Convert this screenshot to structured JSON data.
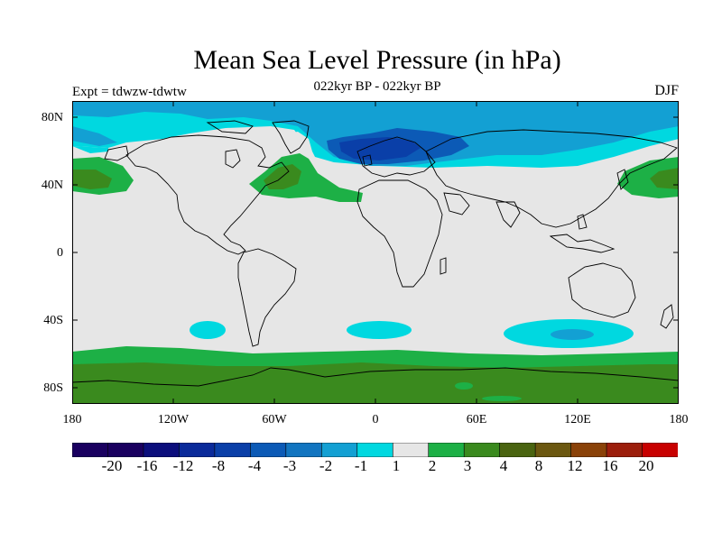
{
  "header": {
    "title": "Mean Sea Level Pressure (in hPa)",
    "subtitle": "022kyr BP - 022kyr BP",
    "expt": "Expt = tdwzw-tdwtw",
    "season": "DJF"
  },
  "axes": {
    "lat_ticks": [
      "80N",
      "40N",
      "0",
      "40S",
      "80S"
    ],
    "lat_values": [
      80,
      40,
      0,
      -40,
      -80
    ],
    "lon_ticks": [
      "180",
      "120W",
      "60W",
      "0",
      "60E",
      "120E",
      "180"
    ],
    "lon_values": [
      -180,
      -120,
      -60,
      0,
      60,
      120,
      180
    ]
  },
  "colorbar": {
    "labels": [
      "-20",
      "-16",
      "-12",
      "-8",
      "-4",
      "-3",
      "-2",
      "-1",
      "1",
      "2",
      "3",
      "4",
      "8",
      "12",
      "16",
      "20"
    ],
    "colors": [
      "#1a0060",
      "#0c0e7c",
      "#0a2a9a",
      "#0a3fa8",
      "#0c5ab6",
      "#1275c0",
      "#13a0d3",
      "#00d8e0",
      "#e6e6e6",
      "#1db046",
      "#3a8a1e",
      "#4a6410",
      "#6c5810",
      "#8a4208",
      "#9c1e0c",
      "#c80000"
    ]
  },
  "map_data": {
    "colors": {
      "neutral": "#e6e6e6",
      "cyan": "#00d8e0",
      "blue_mid": "#13a0d3",
      "blue_deep": "#0c5ab6",
      "blue_core": "#0a3fa8",
      "green_light": "#1db046",
      "green_dark": "#3a8a1e",
      "coast": "#000000"
    }
  }
}
